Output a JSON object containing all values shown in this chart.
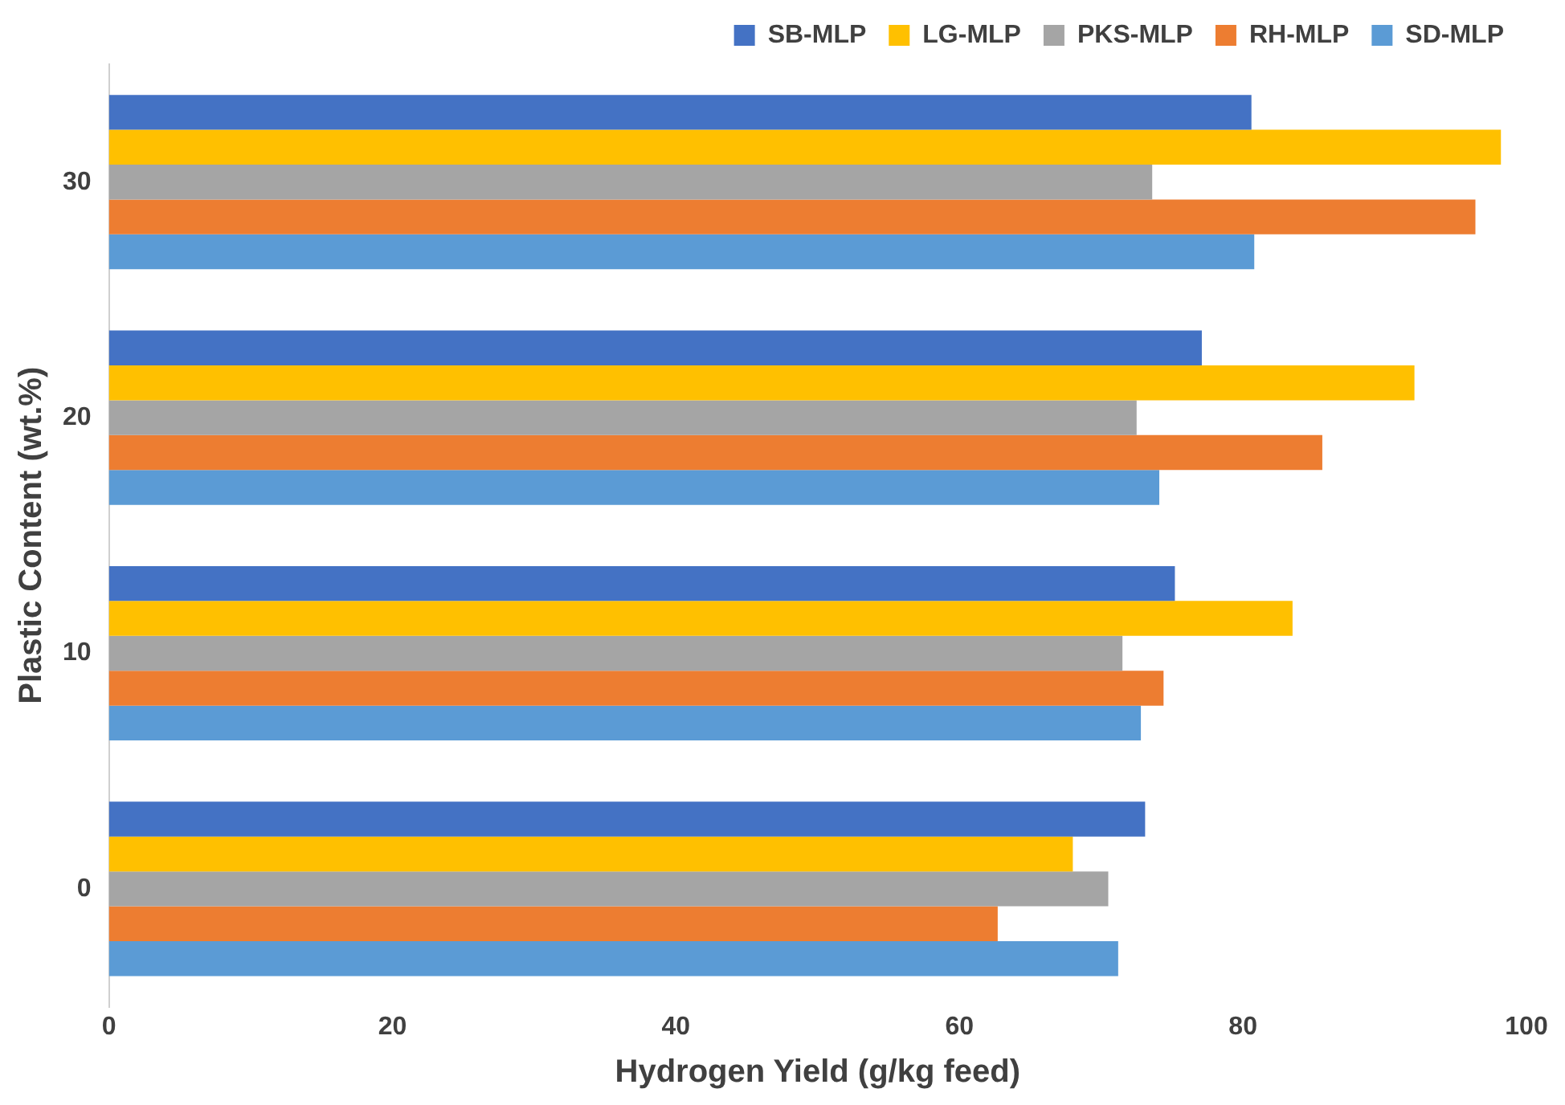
{
  "chart_data": {
    "type": "bar",
    "orientation": "horizontal",
    "xlabel": "Hydrogen Yield (g/kg feed)",
    "ylabel": "Plastic Content (wt.%)",
    "categories": [
      "30",
      "20",
      "10",
      "0"
    ],
    "series": [
      {
        "name": "SB-MLP",
        "color": "#4472c4",
        "values": [
          80.6,
          77.1,
          75.2,
          73.1
        ]
      },
      {
        "name": "LG-MLP",
        "color": "#ffc000",
        "values": [
          98.2,
          92.1,
          83.5,
          68.0
        ]
      },
      {
        "name": "PKS-MLP",
        "color": "#a5a5a5",
        "values": [
          73.6,
          72.5,
          71.5,
          70.5
        ]
      },
      {
        "name": "RH-MLP",
        "color": "#ed7d31",
        "values": [
          96.4,
          85.6,
          74.4,
          62.7
        ]
      },
      {
        "name": "SD-MLP",
        "color": "#5b9bd5",
        "values": [
          80.8,
          74.1,
          72.8,
          71.2
        ]
      }
    ],
    "xlim": [
      0,
      100
    ],
    "xticks": [
      0,
      20,
      40,
      60,
      80,
      100
    ],
    "grid": false,
    "legend": "top"
  }
}
